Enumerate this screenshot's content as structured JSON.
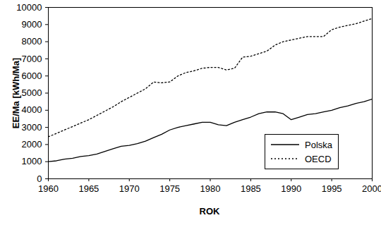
{
  "chart_data": {
    "type": "line",
    "x_label": "ROK",
    "y_label": "EE/Ma [kWh/Ma]",
    "x": [
      1960,
      1961,
      1962,
      1963,
      1964,
      1965,
      1966,
      1967,
      1968,
      1969,
      1970,
      1971,
      1972,
      1973,
      1974,
      1975,
      1976,
      1977,
      1978,
      1979,
      1980,
      1981,
      1982,
      1983,
      1984,
      1985,
      1986,
      1987,
      1988,
      1989,
      1990,
      1991,
      1992,
      1993,
      1994,
      1995,
      1996,
      1997,
      1998,
      1999,
      2000
    ],
    "series": [
      {
        "name": "Polska",
        "color": "#000000",
        "line_style": "solid",
        "values": [
          1000,
          1050,
          1150,
          1200,
          1300,
          1350,
          1450,
          1600,
          1750,
          1900,
          1950,
          2050,
          2200,
          2400,
          2600,
          2850,
          3000,
          3100,
          3200,
          3300,
          3300,
          3150,
          3100,
          3300,
          3450,
          3600,
          3800,
          3900,
          3900,
          3800,
          3450,
          3600,
          3750,
          3800,
          3900,
          4000,
          4150,
          4250,
          4400,
          4500,
          4650
        ]
      },
      {
        "name": "OECD",
        "color": "#000000",
        "line_style": "dotted",
        "values": [
          2450,
          2650,
          2850,
          3050,
          3250,
          3450,
          3700,
          3950,
          4200,
          4500,
          4750,
          5000,
          5250,
          5650,
          5600,
          5650,
          6000,
          6200,
          6300,
          6450,
          6500,
          6500,
          6350,
          6450,
          7100,
          7150,
          7300,
          7450,
          7800,
          8000,
          8100,
          8200,
          8300,
          8300,
          8300,
          8700,
          8850,
          8950,
          9050,
          9200,
          9350
        ]
      }
    ],
    "xlim": [
      1960,
      2000
    ],
    "xticks": [
      1960,
      1965,
      1970,
      1975,
      1980,
      1985,
      1990,
      1995,
      2000
    ],
    "ylim": [
      0,
      10000
    ],
    "yticks": [
      0,
      1000,
      2000,
      3000,
      4000,
      5000,
      6000,
      7000,
      8000,
      9000,
      10000
    ],
    "grid": false,
    "legend": "bottom-right"
  }
}
